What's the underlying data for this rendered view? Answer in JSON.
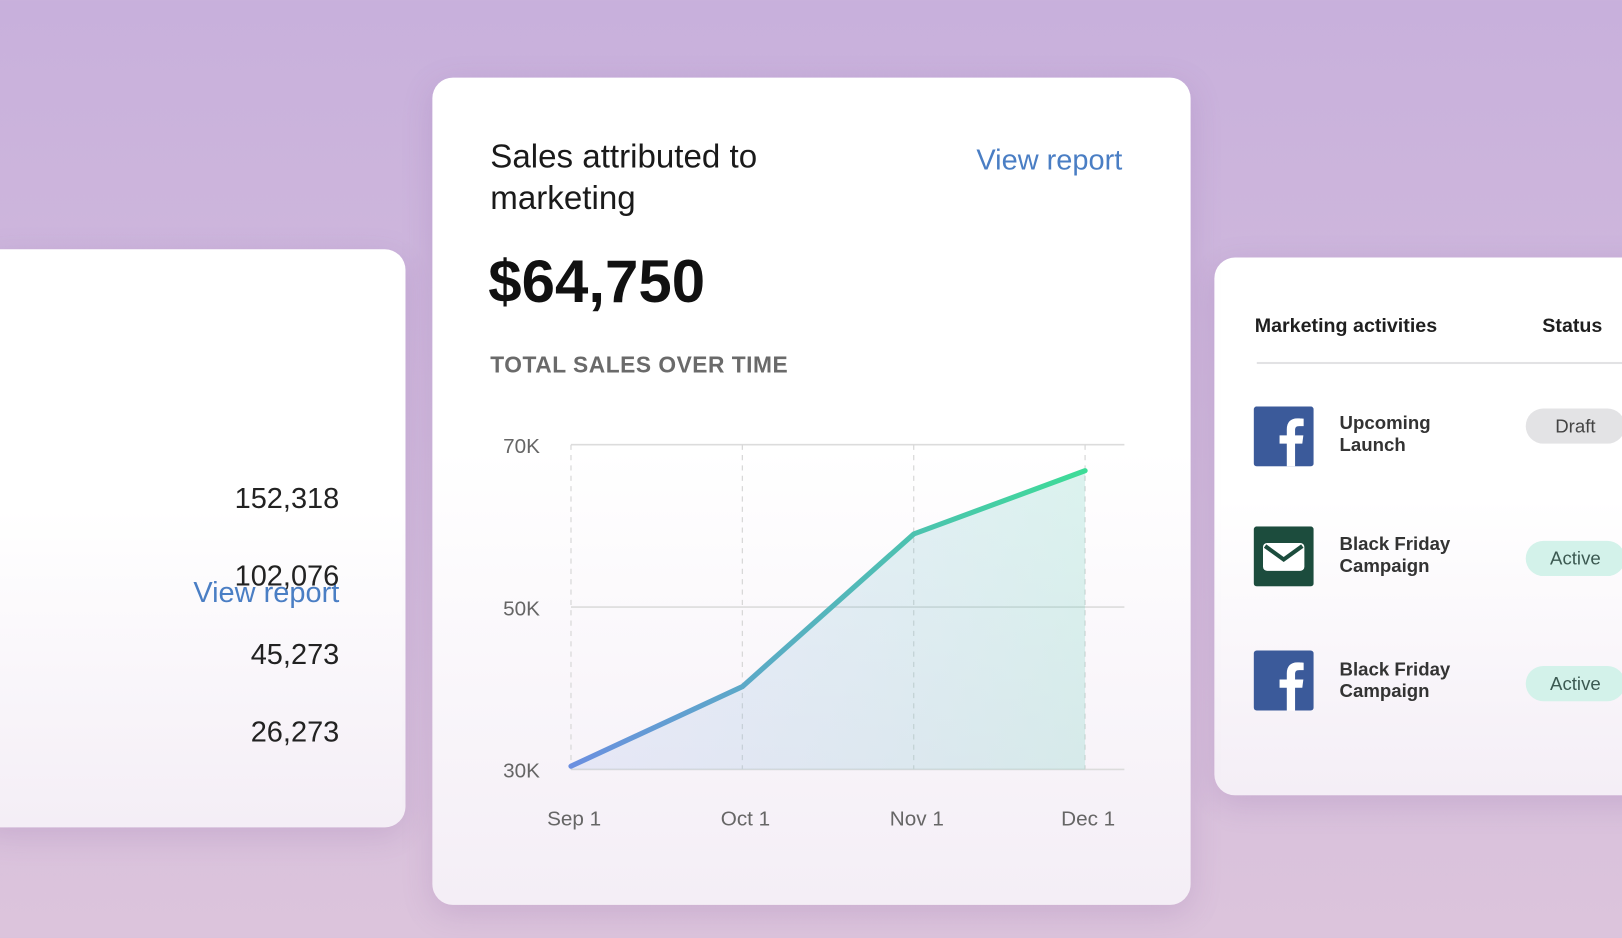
{
  "left_card": {
    "view_report": "View report",
    "values": [
      "152,318",
      "102,076",
      "45,273",
      "26,273"
    ]
  },
  "main_card": {
    "title": "Sales attributed to marketing",
    "view_report": "View report",
    "amount": "$64,750"
  },
  "chart_data": {
    "type": "line",
    "title": "TOTAL SALES OVER TIME",
    "x": [
      "Sep 1",
      "Oct 1",
      "Nov 1",
      "Dec 1"
    ],
    "series": [
      {
        "values": [
          30400,
          40200,
          59000,
          66800
        ],
        "color": "#5fc9b4",
        "gradient": [
          "#6b8fe0",
          "#3ddc97"
        ]
      }
    ],
    "ylim": [
      30000,
      70000
    ],
    "yticks": [
      {
        "value": 30000,
        "label": "30K"
      },
      {
        "value": 50000,
        "label": "50K"
      },
      {
        "value": 70000,
        "label": "70K"
      }
    ],
    "grid": true
  },
  "right_card": {
    "headers": [
      "Marketing activities",
      "Status"
    ],
    "rows": [
      {
        "name": "Upcoming Launch",
        "status": "Draft"
      },
      {
        "name": "Black Friday Campaign",
        "status": "Active"
      },
      {
        "name": "Black Friday Campaign",
        "status": "Active"
      }
    ]
  }
}
